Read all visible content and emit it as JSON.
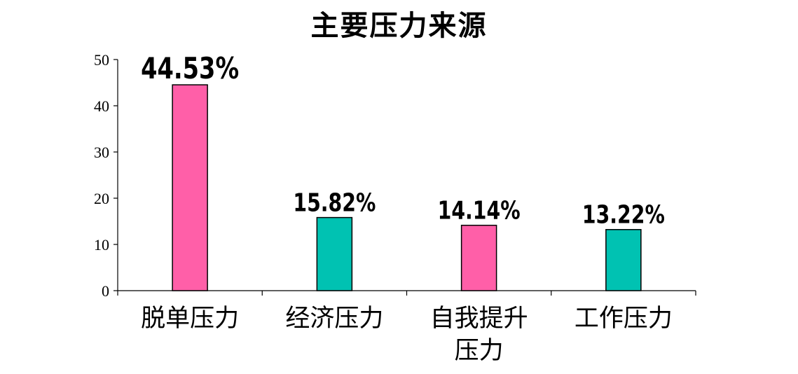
{
  "chart_data": {
    "type": "bar",
    "title": "主要压力来源",
    "categories": [
      "脱单压力",
      "经济压力",
      "自我提升压力",
      "工作压力"
    ],
    "category_lines": [
      [
        "脱单压力"
      ],
      [
        "经济压力"
      ],
      [
        "自我提升",
        "压力"
      ],
      [
        "工作压力"
      ]
    ],
    "values": [
      44.53,
      15.82,
      14.14,
      13.22
    ],
    "value_labels": [
      "44.53%",
      "15.82%",
      "14.14%",
      "13.22%"
    ],
    "ylim": [
      0,
      50
    ],
    "yticks": [
      0,
      10,
      20,
      30,
      40,
      50
    ],
    "xlabel": "",
    "ylabel": "",
    "grid": false,
    "bar_colors": [
      "#FF5FA8",
      "#00C2B2",
      "#FF5FA8",
      "#00C2B2"
    ]
  }
}
